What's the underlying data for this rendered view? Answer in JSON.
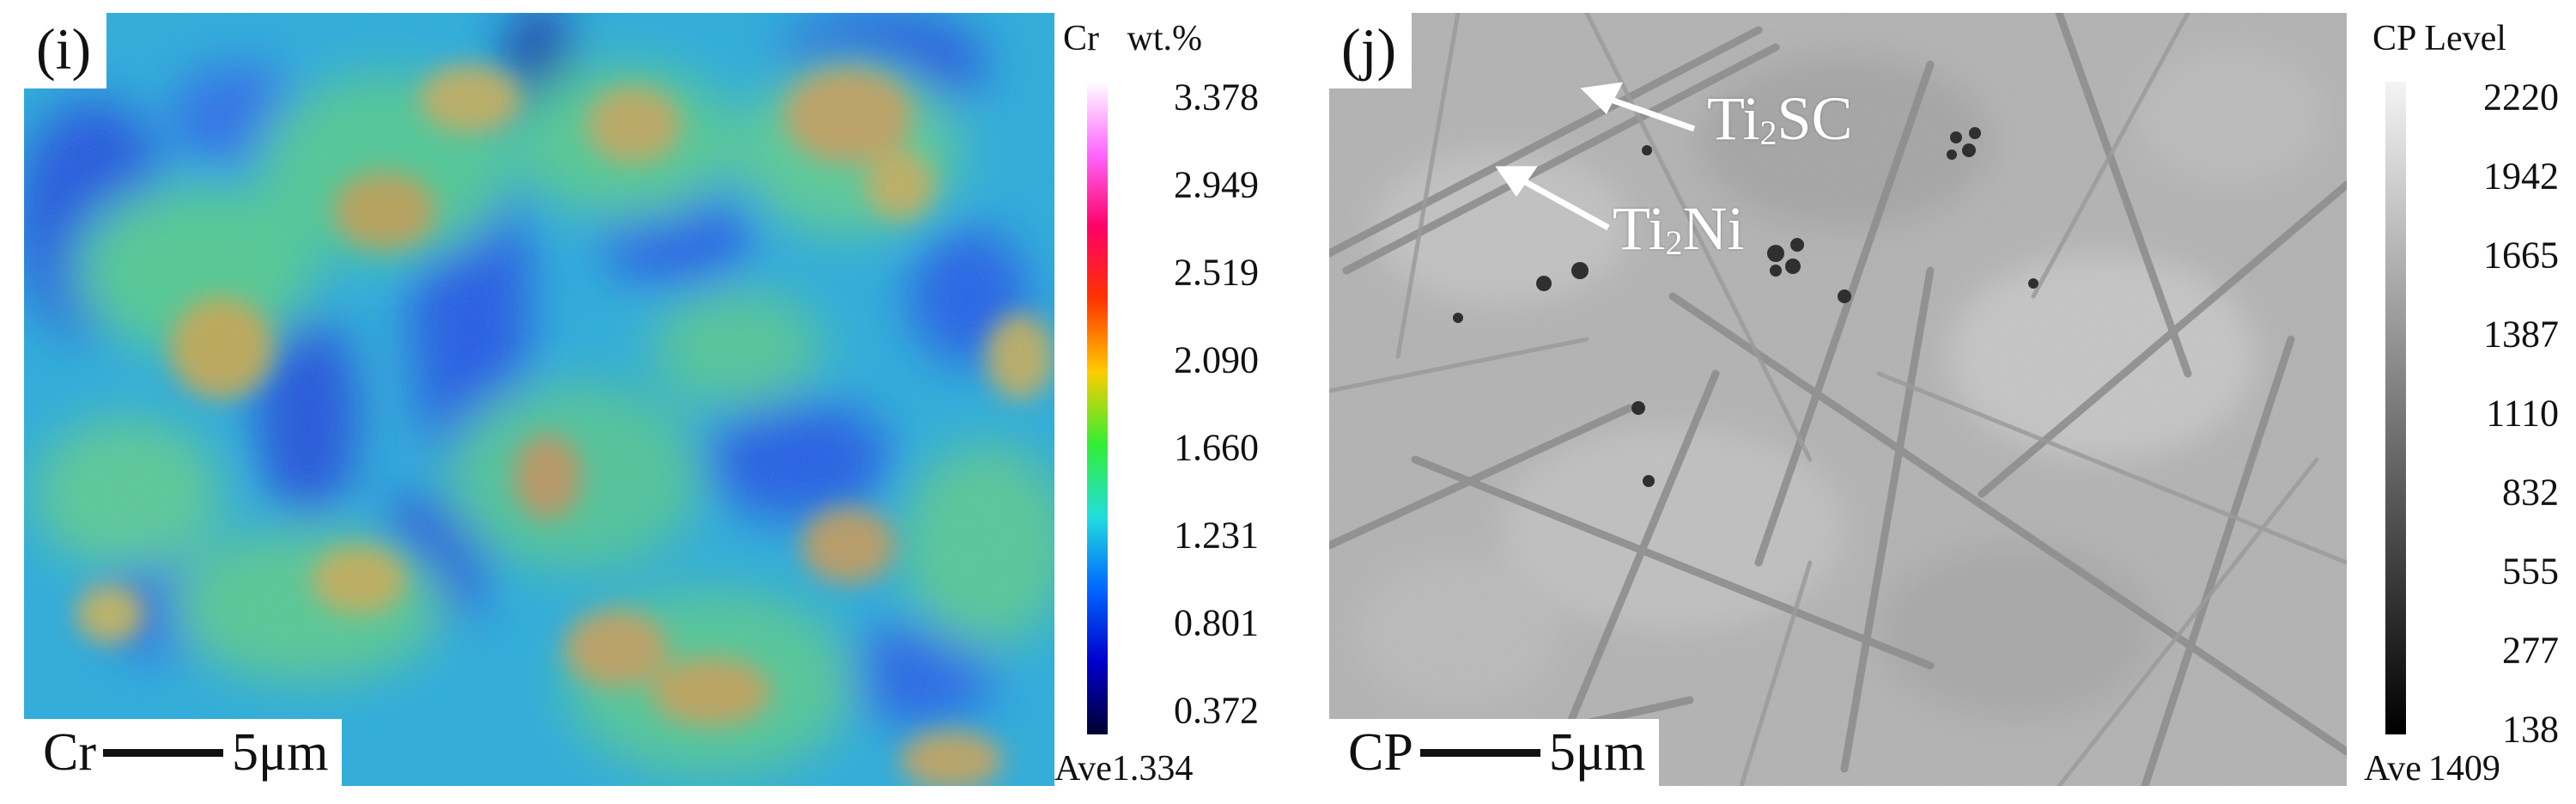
{
  "panel_i": {
    "label": "(i)",
    "legend_element": "Cr",
    "legend_unit": "wt.%",
    "ticks": [
      "3.378",
      "2.949",
      "2.519",
      "2.090",
      "1.660",
      "1.231",
      "0.801",
      "0.372"
    ],
    "ave_label": "Ave",
    "ave_value": "1.334",
    "scale_prefix": "Cr",
    "scale_text": "5μm",
    "colors": [
      "#ffffff",
      "#ff66ff",
      "#ff0066",
      "#ff3300",
      "#ffcc00",
      "#33ee33",
      "#22dddd",
      "#0066ff",
      "#0000cc",
      "#000033"
    ]
  },
  "panel_j": {
    "label": "(j)",
    "legend_title": "CP  Level",
    "ticks": [
      "2220",
      "1942",
      "1665",
      "1387",
      "1110",
      "832",
      "555",
      "277",
      "138"
    ],
    "ave_label": "Ave",
    "ave_value": "1409",
    "scale_prefix": "CP",
    "scale_text": "5μm",
    "annotation_1": {
      "main": "Ti",
      "sub": "2",
      "rest": "SC"
    },
    "annotation_2": {
      "main": "Ti",
      "sub": "2",
      "rest": "Ni"
    }
  }
}
